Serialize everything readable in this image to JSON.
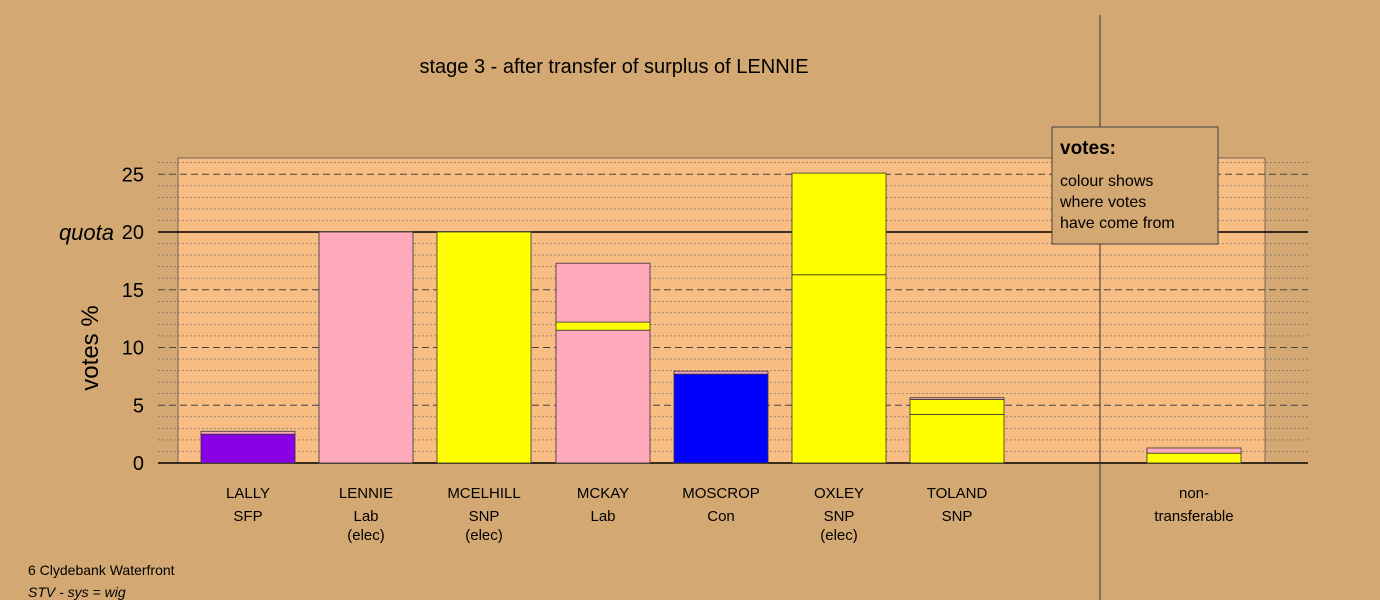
{
  "chart_data": {
    "type": "bar",
    "title": "stage 3 - after transfer of surplus of LENNIE",
    "ylabel": "votes %",
    "ylim": [
      0,
      26.5
    ],
    "yticks": [
      0,
      5,
      10,
      15,
      20,
      25
    ],
    "quota": {
      "label": "quota",
      "value": 20
    },
    "candidates": [
      {
        "name": "LALLY",
        "party": "SFP",
        "status": "",
        "segments": [
          {
            "value": 2.5,
            "color": "#8a00e6"
          },
          {
            "value": 0.25,
            "color": "#ffaabb"
          }
        ]
      },
      {
        "name": "LENNIE",
        "party": "Lab",
        "status": "(elec)",
        "segments": [
          {
            "value": 20.0,
            "color": "#ffaabb"
          }
        ]
      },
      {
        "name": "MCELHILL",
        "party": "SNP",
        "status": "(elec)",
        "segments": [
          {
            "value": 20.0,
            "color": "#ffff00"
          }
        ]
      },
      {
        "name": "MCKAY",
        "party": "Lab",
        "status": "",
        "segments": [
          {
            "value": 11.5,
            "color": "#ffaabb"
          },
          {
            "value": 0.7,
            "color": "#ffff00"
          },
          {
            "value": 5.1,
            "color": "#ffaabb"
          }
        ]
      },
      {
        "name": "MOSCROP",
        "party": "Con",
        "status": "",
        "segments": [
          {
            "value": 7.7,
            "color": "#0000ff"
          },
          {
            "value": 0.25,
            "color": "#ffaabb"
          }
        ]
      },
      {
        "name": "OXLEY",
        "party": "SNP",
        "status": "(elec)",
        "segments": [
          {
            "value": 16.3,
            "color": "#ffff00"
          },
          {
            "value": 8.8,
            "color": "#ffff00"
          }
        ]
      },
      {
        "name": "TOLAND",
        "party": "SNP",
        "status": "",
        "segments": [
          {
            "value": 4.2,
            "color": "#ffff00"
          },
          {
            "value": 1.3,
            "color": "#ffff00"
          },
          {
            "value": 0.15,
            "color": "#ffaabb"
          }
        ]
      },
      {
        "name": "non-",
        "party": "transferable",
        "status": "",
        "segments": [
          {
            "value": 0.85,
            "color": "#ffff00"
          },
          {
            "value": 0.45,
            "color": "#ffaabb"
          }
        ]
      }
    ],
    "legend": {
      "title": "votes:",
      "lines": [
        "colour shows",
        "where votes",
        "have come from"
      ]
    },
    "grid": true
  },
  "footer": {
    "ward": "6 Clydebank Waterfront",
    "system": "STV - sys = wig"
  },
  "colors": {
    "background": "#d4a872",
    "plot_panel": "#f8bd82"
  }
}
